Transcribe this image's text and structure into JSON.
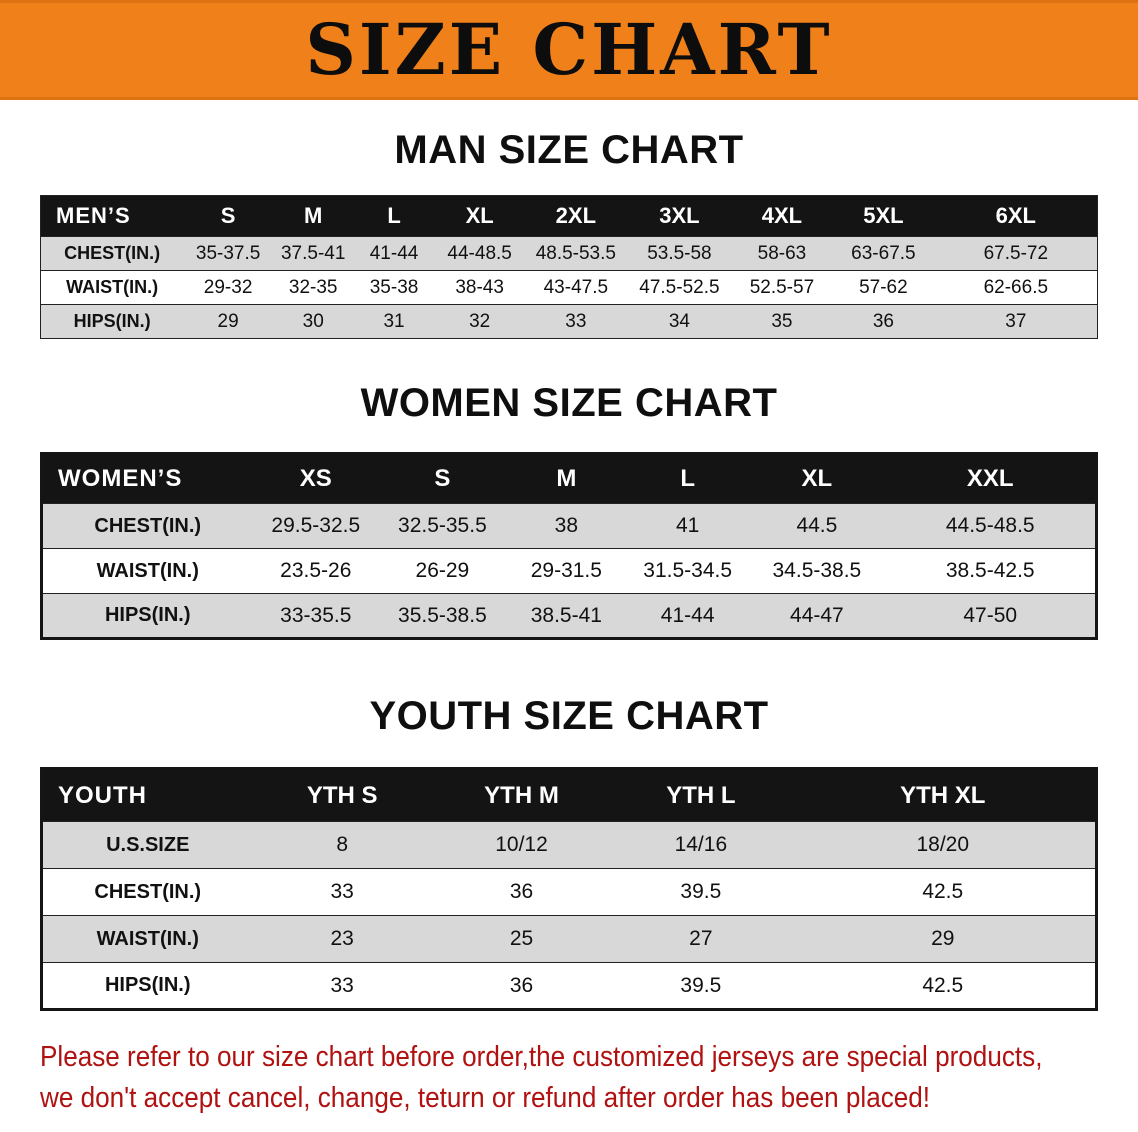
{
  "banner": {
    "title": "SIZE CHART"
  },
  "sections": [
    {
      "id": "men",
      "heading": "MAN SIZE CHART",
      "table": {
        "header": [
          "MEN’S",
          "S",
          "M",
          "L",
          "XL",
          "2XL",
          "3XL",
          "4XL",
          "5XL",
          "6XL"
        ],
        "rows": [
          {
            "label": "CHEST(IN.)",
            "values": [
              "35-37.5",
              "37.5-41",
              "41-44",
              "44-48.5",
              "48.5-53.5",
              "53.5-58",
              "58-63",
              "63-67.5",
              "67.5-72"
            ]
          },
          {
            "label": "WAIST(IN.)",
            "values": [
              "29-32",
              "32-35",
              "35-38",
              "38-43",
              "43-47.5",
              "47.5-52.5",
              "52.5-57",
              "57-62",
              "62-66.5"
            ]
          },
          {
            "label": "HIPS(IN.)",
            "values": [
              "29",
              "30",
              "31",
              "32",
              "33",
              "34",
              "35",
              "36",
              "37"
            ]
          }
        ]
      }
    },
    {
      "id": "women",
      "heading": "WOMEN SIZE CHART",
      "table": {
        "header": [
          "WOMEN’S",
          "XS",
          "S",
          "M",
          "L",
          "XL",
          "XXL"
        ],
        "rows": [
          {
            "label": "CHEST(IN.)",
            "values": [
              "29.5-32.5",
              "32.5-35.5",
              "38",
              "41",
              "44.5",
              "44.5-48.5"
            ]
          },
          {
            "label": "WAIST(IN.)",
            "values": [
              "23.5-26",
              "26-29",
              "29-31.5",
              "31.5-34.5",
              "34.5-38.5",
              "38.5-42.5"
            ]
          },
          {
            "label": "HIPS(IN.)",
            "values": [
              "33-35.5",
              "35.5-38.5",
              "38.5-41",
              "41-44",
              "44-47",
              "47-50"
            ]
          }
        ]
      }
    },
    {
      "id": "youth",
      "heading": "YOUTH SIZE CHART",
      "table": {
        "header": [
          "YOUTH",
          "YTH S",
          "YTH M",
          "YTH L",
          "YTH XL"
        ],
        "rows": [
          {
            "label": "U.S.SIZE",
            "values": [
              "8",
              "10/12",
              "14/16",
              "18/20"
            ]
          },
          {
            "label": "CHEST(IN.)",
            "values": [
              "33",
              "36",
              "39.5",
              "42.5"
            ]
          },
          {
            "label": "WAIST(IN.)",
            "values": [
              "23",
              "25",
              "27",
              "29"
            ]
          },
          {
            "label": "HIPS(IN.)",
            "values": [
              "33",
              "36",
              "39.5",
              "42.5"
            ]
          }
        ]
      }
    }
  ],
  "disclaimer": {
    "line1": "Please refer to our size chart before order,the customized jerseys are special products,",
    "line2": "we don't accept cancel, change, teturn or refund after order has been placed!"
  },
  "colors": {
    "banner_orange": "#F08019",
    "table_header_black": "#141414",
    "row_stripe_gray": "#D8D8D8",
    "disclaimer_red": "#B01111"
  }
}
